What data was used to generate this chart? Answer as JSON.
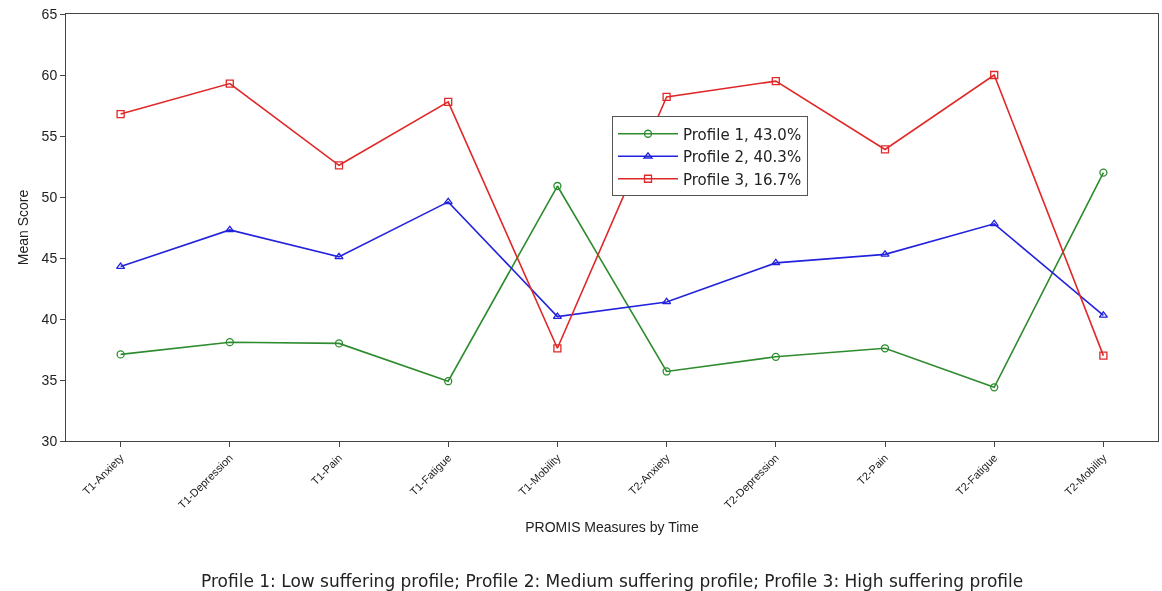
{
  "chart_data": {
    "type": "line",
    "xlabel": "PROMIS Measures by Time",
    "ylabel": "Mean Score",
    "categories": [
      "T1-Anxiety",
      "T1-Depression",
      "T1-Pain",
      "T1-Fatigue",
      "T1-Mobility",
      "T2-Anxiety",
      "T2-Depression",
      "T2-Pain",
      "T2-Fatigue",
      "T2-Mobility"
    ],
    "series": [
      {
        "name": "Profile 1, 43.0%",
        "color": "#2e8b2e",
        "marker": "circle",
        "values": [
          37.1,
          38.1,
          38.0,
          34.9,
          50.9,
          35.7,
          36.9,
          37.6,
          34.4,
          52.0
        ]
      },
      {
        "name": "Profile 2, 40.3%",
        "color": "#2222dd",
        "marker": "triangle",
        "values": [
          44.3,
          47.3,
          45.1,
          49.6,
          40.2,
          41.4,
          44.6,
          45.3,
          47.8,
          40.3
        ]
      },
      {
        "name": "Profile 3, 16.7%",
        "color": "#e02828",
        "marker": "square",
        "values": [
          56.8,
          59.3,
          52.6,
          57.8,
          37.6,
          58.2,
          59.5,
          53.9,
          60.0,
          37.0
        ]
      }
    ],
    "ylim": [
      30,
      65
    ],
    "yticks": [
      30,
      35,
      40,
      45,
      50,
      55,
      60,
      65
    ],
    "grid": false,
    "legend": "top right",
    "line_style": "solid",
    "annotations": [
      "Profile 1: Low suffering profile; Profile 2: Medium suffering profile; Profile 3: High suffering profile"
    ]
  }
}
